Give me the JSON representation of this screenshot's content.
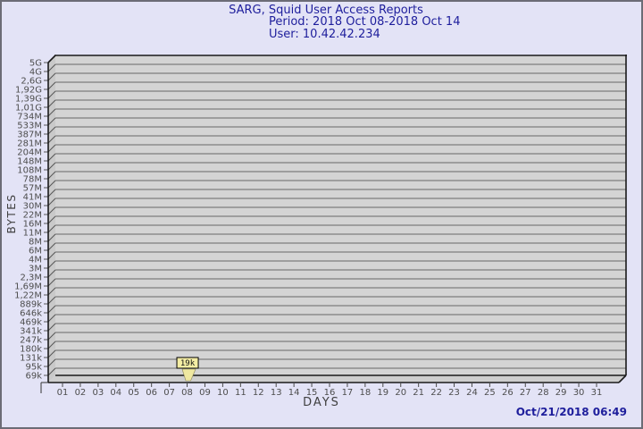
{
  "title": {
    "line1": "SARG, Squid User Access Reports",
    "line2": "Period: 2018 Oct 08-2018 Oct 14",
    "line3": "User: 10.42.42.234"
  },
  "footer": {
    "timestamp": "Oct/21/2018 06:49"
  },
  "chart_data": {
    "type": "bar",
    "title": "SARG, Squid User Access Reports",
    "subtitle": "Period: 2018 Oct 08-2018 Oct 14",
    "user_line": "User: 10.42.42.234",
    "xlabel": "DAYS",
    "ylabel": "BYTES",
    "y_scale": "log",
    "ylim_labels": [
      "69k",
      "5G"
    ],
    "grid": "horizontal",
    "y_tick_labels_top_to_bottom": [
      "5G",
      "4G",
      "2,6G",
      "1,92G",
      "1,39G",
      "1,01G",
      "734M",
      "533M",
      "387M",
      "281M",
      "204M",
      "148M",
      "108M",
      "78M",
      "57M",
      "41M",
      "30M",
      "22M",
      "16M",
      "11M",
      "8M",
      "6M",
      "4M",
      "3M",
      "2,3M",
      "1,69M",
      "1,22M",
      "889k",
      "646k",
      "469k",
      "341k",
      "247k",
      "180k",
      "131k",
      "95k",
      "69k"
    ],
    "x_tick_labels": [
      "01",
      "02",
      "03",
      "04",
      "05",
      "06",
      "07",
      "08",
      "09",
      "10",
      "11",
      "12",
      "13",
      "14",
      "15",
      "16",
      "17",
      "18",
      "19",
      "20",
      "21",
      "22",
      "23",
      "24",
      "25",
      "26",
      "27",
      "28",
      "29",
      "30",
      "31"
    ],
    "points": [
      {
        "day": "08",
        "value_label": "19k",
        "bytes": 19000
      }
    ],
    "colors": {
      "background": "#e3e3f6",
      "plot_bg": "#d4d4d4",
      "wall": "#c9c9c9",
      "floor": "#cecece",
      "grid": "#696969",
      "edge": "#1a1a1a",
      "tick_text": "#4d4d4d",
      "bar": "#efe8a0",
      "annotation_bg": "#f4eda4",
      "annotation_border": "#000000",
      "title_text": "#1e1e9c"
    }
  }
}
